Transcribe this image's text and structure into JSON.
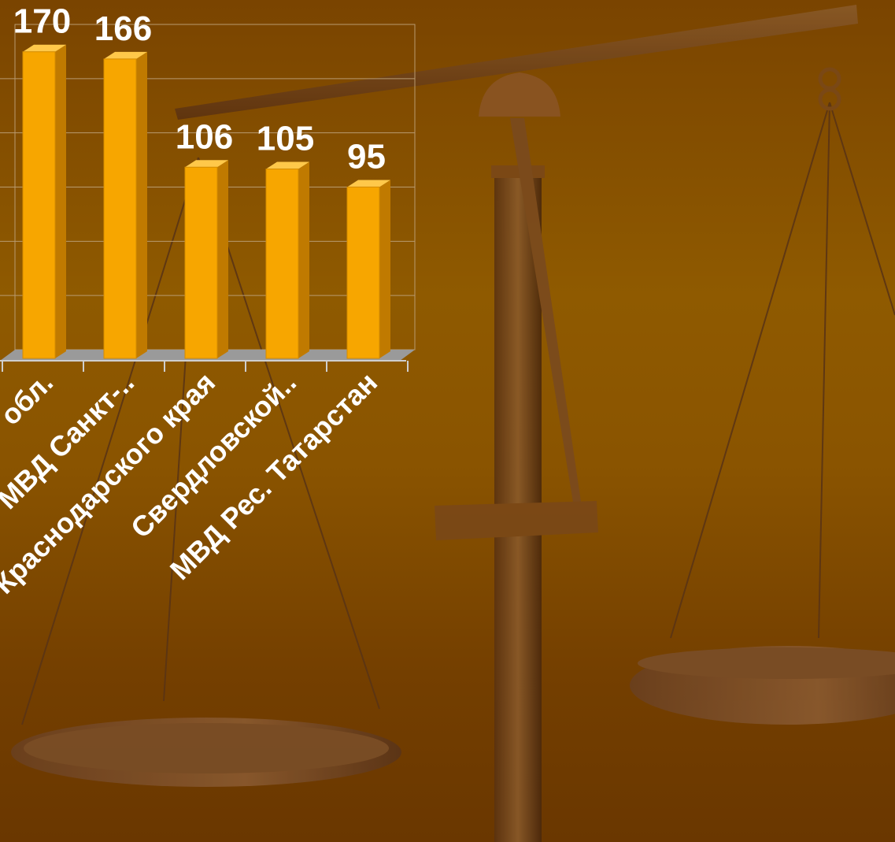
{
  "chart_data": {
    "type": "bar",
    "categories": [
      "обл.",
      "МВД Санкт-..",
      "Краснодарского края",
      "Свердловской..",
      "МВД Рес. Татарстан"
    ],
    "values": [
      170,
      166,
      106,
      105,
      95
    ],
    "grid": true,
    "bar_color": "#f7a600",
    "bar_side_color": "#c07a00",
    "bar_top_color": "#ffc84a",
    "label_color": "#ffffff",
    "floor_color": "#9a9a9a"
  }
}
